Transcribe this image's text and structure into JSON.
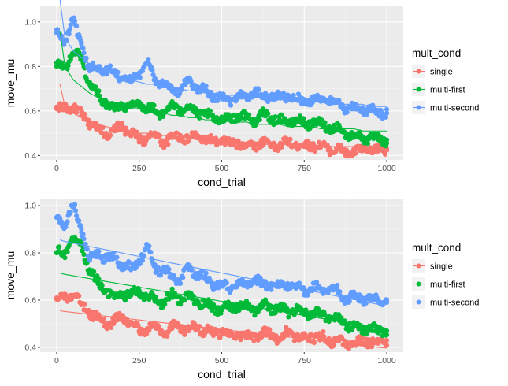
{
  "chart_data": [
    {
      "type": "scatter",
      "xlabel": "cond_trial",
      "ylabel": "move_mu",
      "xlim": [
        0,
        1000
      ],
      "ylim": [
        0.38,
        1.07
      ],
      "x_ticks": [
        0,
        250,
        500,
        750,
        1000
      ],
      "y_ticks": [
        0.4,
        0.6,
        0.8,
        1.0
      ],
      "y_tick_labels": [
        "0.4",
        "0.6",
        "0.8",
        "1.0"
      ],
      "grid": true,
      "legend": {
        "title": "mult_cond",
        "position": "right"
      },
      "fit": "power",
      "series": [
        {
          "name": "single",
          "color": "#F8766D",
          "x": [
            0,
            25,
            50,
            75,
            100,
            125,
            150,
            175,
            200,
            225,
            250,
            275,
            300,
            325,
            350,
            375,
            400,
            425,
            450,
            475,
            500,
            525,
            550,
            575,
            600,
            625,
            650,
            675,
            700,
            725,
            750,
            775,
            800,
            825,
            850,
            875,
            900,
            925,
            950,
            975,
            1000
          ],
          "y": [
            0.61,
            0.61,
            0.62,
            0.58,
            0.55,
            0.52,
            0.5,
            0.51,
            0.53,
            0.5,
            0.47,
            0.48,
            0.49,
            0.46,
            0.48,
            0.49,
            0.47,
            0.49,
            0.47,
            0.46,
            0.47,
            0.45,
            0.46,
            0.44,
            0.45,
            0.46,
            0.45,
            0.44,
            0.46,
            0.45,
            0.44,
            0.45,
            0.44,
            0.43,
            0.43,
            0.41,
            0.42,
            0.42,
            0.43,
            0.42,
            0.43
          ],
          "fit_line": [
            0.72,
            0.62,
            0.59,
            0.57,
            0.55,
            0.54,
            0.53,
            0.52,
            0.51,
            0.51,
            0.5,
            0.5,
            0.49,
            0.49,
            0.48,
            0.48,
            0.48,
            0.47,
            0.47,
            0.47,
            0.46,
            0.46,
            0.46,
            0.46,
            0.46,
            0.45,
            0.45,
            0.45,
            0.45,
            0.45,
            0.44,
            0.44,
            0.44,
            0.44,
            0.44,
            0.44,
            0.44,
            0.43,
            0.43,
            0.43,
            0.43
          ]
        },
        {
          "name": "multi-first",
          "color": "#00BA38",
          "x": [
            0,
            25,
            50,
            75,
            100,
            125,
            150,
            175,
            200,
            225,
            250,
            275,
            300,
            325,
            350,
            375,
            400,
            425,
            450,
            475,
            500,
            525,
            550,
            575,
            600,
            625,
            650,
            675,
            700,
            725,
            750,
            775,
            800,
            825,
            850,
            875,
            900,
            925,
            950,
            975,
            1000
          ],
          "y": [
            0.8,
            0.8,
            0.86,
            0.84,
            0.72,
            0.67,
            0.64,
            0.61,
            0.63,
            0.62,
            0.64,
            0.61,
            0.6,
            0.59,
            0.62,
            0.61,
            0.61,
            0.6,
            0.58,
            0.57,
            0.56,
            0.57,
            0.58,
            0.57,
            0.56,
            0.58,
            0.57,
            0.56,
            0.55,
            0.56,
            0.54,
            0.55,
            0.54,
            0.53,
            0.52,
            0.5,
            0.49,
            0.48,
            0.48,
            0.47,
            0.47
          ],
          "fit_line": [
            0.96,
            0.8,
            0.74,
            0.71,
            0.68,
            0.66,
            0.65,
            0.63,
            0.62,
            0.61,
            0.61,
            0.6,
            0.59,
            0.59,
            0.58,
            0.58,
            0.57,
            0.57,
            0.56,
            0.56,
            0.56,
            0.55,
            0.55,
            0.55,
            0.54,
            0.54,
            0.54,
            0.54,
            0.53,
            0.53,
            0.53,
            0.53,
            0.52,
            0.52,
            0.52,
            0.52,
            0.52,
            0.51,
            0.51,
            0.51,
            0.51
          ]
        },
        {
          "name": "multi-second",
          "color": "#619CFF",
          "x": [
            0,
            25,
            50,
            75,
            100,
            125,
            150,
            175,
            200,
            225,
            250,
            275,
            300,
            325,
            350,
            375,
            400,
            425,
            450,
            475,
            500,
            525,
            550,
            575,
            600,
            625,
            650,
            675,
            700,
            725,
            750,
            775,
            800,
            825,
            850,
            875,
            900,
            925,
            950,
            975,
            1000
          ],
          "y": [
            0.95,
            0.92,
            1.0,
            0.9,
            0.78,
            0.8,
            0.78,
            0.78,
            0.75,
            0.73,
            0.77,
            0.82,
            0.74,
            0.72,
            0.7,
            0.69,
            0.73,
            0.71,
            0.69,
            0.67,
            0.66,
            0.65,
            0.67,
            0.66,
            0.69,
            0.66,
            0.67,
            0.66,
            0.67,
            0.65,
            0.64,
            0.65,
            0.65,
            0.65,
            0.64,
            0.61,
            0.61,
            0.61,
            0.6,
            0.6,
            0.59
          ],
          "fit_line": [
            1.1,
            0.93,
            0.87,
            0.84,
            0.81,
            0.79,
            0.78,
            0.76,
            0.75,
            0.74,
            0.73,
            0.72,
            0.72,
            0.71,
            0.7,
            0.7,
            0.69,
            0.69,
            0.68,
            0.68,
            0.67,
            0.67,
            0.67,
            0.66,
            0.66,
            0.66,
            0.65,
            0.65,
            0.65,
            0.64,
            0.64,
            0.64,
            0.64,
            0.63,
            0.63,
            0.63,
            0.63,
            0.63,
            0.62,
            0.62,
            0.62
          ]
        }
      ]
    },
    {
      "type": "scatter",
      "xlabel": "cond_trial",
      "ylabel": "move_mu",
      "xlim": [
        0,
        1000
      ],
      "ylim": [
        0.38,
        1.03
      ],
      "x_ticks": [
        0,
        250,
        500,
        750,
        1000
      ],
      "y_ticks": [
        0.4,
        0.6,
        0.8,
        1.0
      ],
      "y_tick_labels": [
        "0.4",
        "0.6",
        "0.8",
        "1.0"
      ],
      "grid": true,
      "legend": {
        "title": "mult_cond",
        "position": "right"
      },
      "fit": "linear",
      "series": [
        {
          "name": "single",
          "color": "#F8766D",
          "x": [
            0,
            25,
            50,
            75,
            100,
            125,
            150,
            175,
            200,
            225,
            250,
            275,
            300,
            325,
            350,
            375,
            400,
            425,
            450,
            475,
            500,
            525,
            550,
            575,
            600,
            625,
            650,
            675,
            700,
            725,
            750,
            775,
            800,
            825,
            850,
            875,
            900,
            925,
            950,
            975,
            1000
          ],
          "y": [
            0.61,
            0.61,
            0.62,
            0.58,
            0.55,
            0.52,
            0.5,
            0.51,
            0.53,
            0.5,
            0.47,
            0.48,
            0.49,
            0.46,
            0.48,
            0.49,
            0.47,
            0.49,
            0.47,
            0.46,
            0.47,
            0.45,
            0.46,
            0.44,
            0.45,
            0.46,
            0.45,
            0.44,
            0.46,
            0.45,
            0.44,
            0.45,
            0.44,
            0.43,
            0.43,
            0.41,
            0.42,
            0.42,
            0.43,
            0.42,
            0.43
          ],
          "fit_line": [
            0.555,
            0.552,
            0.548,
            0.544,
            0.54,
            0.536,
            0.532,
            0.528,
            0.524,
            0.52,
            0.516,
            0.512,
            0.508,
            0.504,
            0.5,
            0.496,
            0.492,
            0.488,
            0.484,
            0.48,
            0.476,
            0.472,
            0.468,
            0.464,
            0.46,
            0.456,
            0.452,
            0.448,
            0.444,
            0.44,
            0.436,
            0.432,
            0.428,
            0.424,
            0.42,
            0.416,
            0.412,
            0.408,
            0.404,
            0.4,
            0.397
          ]
        },
        {
          "name": "multi-first",
          "color": "#00BA38",
          "x": [
            0,
            25,
            50,
            75,
            100,
            125,
            150,
            175,
            200,
            225,
            250,
            275,
            300,
            325,
            350,
            375,
            400,
            425,
            450,
            475,
            500,
            525,
            550,
            575,
            600,
            625,
            650,
            675,
            700,
            725,
            750,
            775,
            800,
            825,
            850,
            875,
            900,
            925,
            950,
            975,
            1000
          ],
          "y": [
            0.8,
            0.8,
            0.86,
            0.84,
            0.72,
            0.67,
            0.64,
            0.61,
            0.63,
            0.62,
            0.64,
            0.61,
            0.6,
            0.59,
            0.62,
            0.61,
            0.61,
            0.6,
            0.58,
            0.57,
            0.56,
            0.57,
            0.58,
            0.57,
            0.56,
            0.58,
            0.57,
            0.56,
            0.55,
            0.56,
            0.54,
            0.55,
            0.54,
            0.53,
            0.52,
            0.5,
            0.49,
            0.48,
            0.48,
            0.47,
            0.47
          ],
          "fit_line": [
            0.715,
            0.709,
            0.703,
            0.697,
            0.691,
            0.685,
            0.679,
            0.673,
            0.667,
            0.661,
            0.655,
            0.649,
            0.643,
            0.637,
            0.631,
            0.625,
            0.619,
            0.613,
            0.607,
            0.601,
            0.595,
            0.589,
            0.583,
            0.577,
            0.571,
            0.565,
            0.559,
            0.553,
            0.547,
            0.541,
            0.535,
            0.529,
            0.523,
            0.517,
            0.511,
            0.505,
            0.499,
            0.493,
            0.487,
            0.481,
            0.475
          ]
        },
        {
          "name": "multi-second",
          "color": "#619CFF",
          "x": [
            0,
            25,
            50,
            75,
            100,
            125,
            150,
            175,
            200,
            225,
            250,
            275,
            300,
            325,
            350,
            375,
            400,
            425,
            450,
            475,
            500,
            525,
            550,
            575,
            600,
            625,
            650,
            675,
            700,
            725,
            750,
            775,
            800,
            825,
            850,
            875,
            900,
            925,
            950,
            975,
            1000
          ],
          "y": [
            0.95,
            0.92,
            1.0,
            0.9,
            0.78,
            0.8,
            0.78,
            0.78,
            0.75,
            0.73,
            0.77,
            0.82,
            0.74,
            0.72,
            0.7,
            0.69,
            0.73,
            0.71,
            0.69,
            0.67,
            0.66,
            0.65,
            0.67,
            0.66,
            0.69,
            0.66,
            0.67,
            0.66,
            0.67,
            0.65,
            0.64,
            0.65,
            0.65,
            0.65,
            0.64,
            0.61,
            0.61,
            0.61,
            0.6,
            0.6,
            0.59
          ],
          "fit_line": [
            0.855,
            0.848,
            0.841,
            0.834,
            0.827,
            0.82,
            0.813,
            0.806,
            0.799,
            0.792,
            0.785,
            0.778,
            0.771,
            0.764,
            0.757,
            0.75,
            0.743,
            0.736,
            0.729,
            0.722,
            0.715,
            0.708,
            0.701,
            0.694,
            0.687,
            0.68,
            0.673,
            0.666,
            0.659,
            0.652,
            0.645,
            0.638,
            0.631,
            0.624,
            0.617,
            0.61,
            0.603,
            0.596,
            0.589,
            0.582,
            0.575
          ]
        }
      ]
    }
  ]
}
